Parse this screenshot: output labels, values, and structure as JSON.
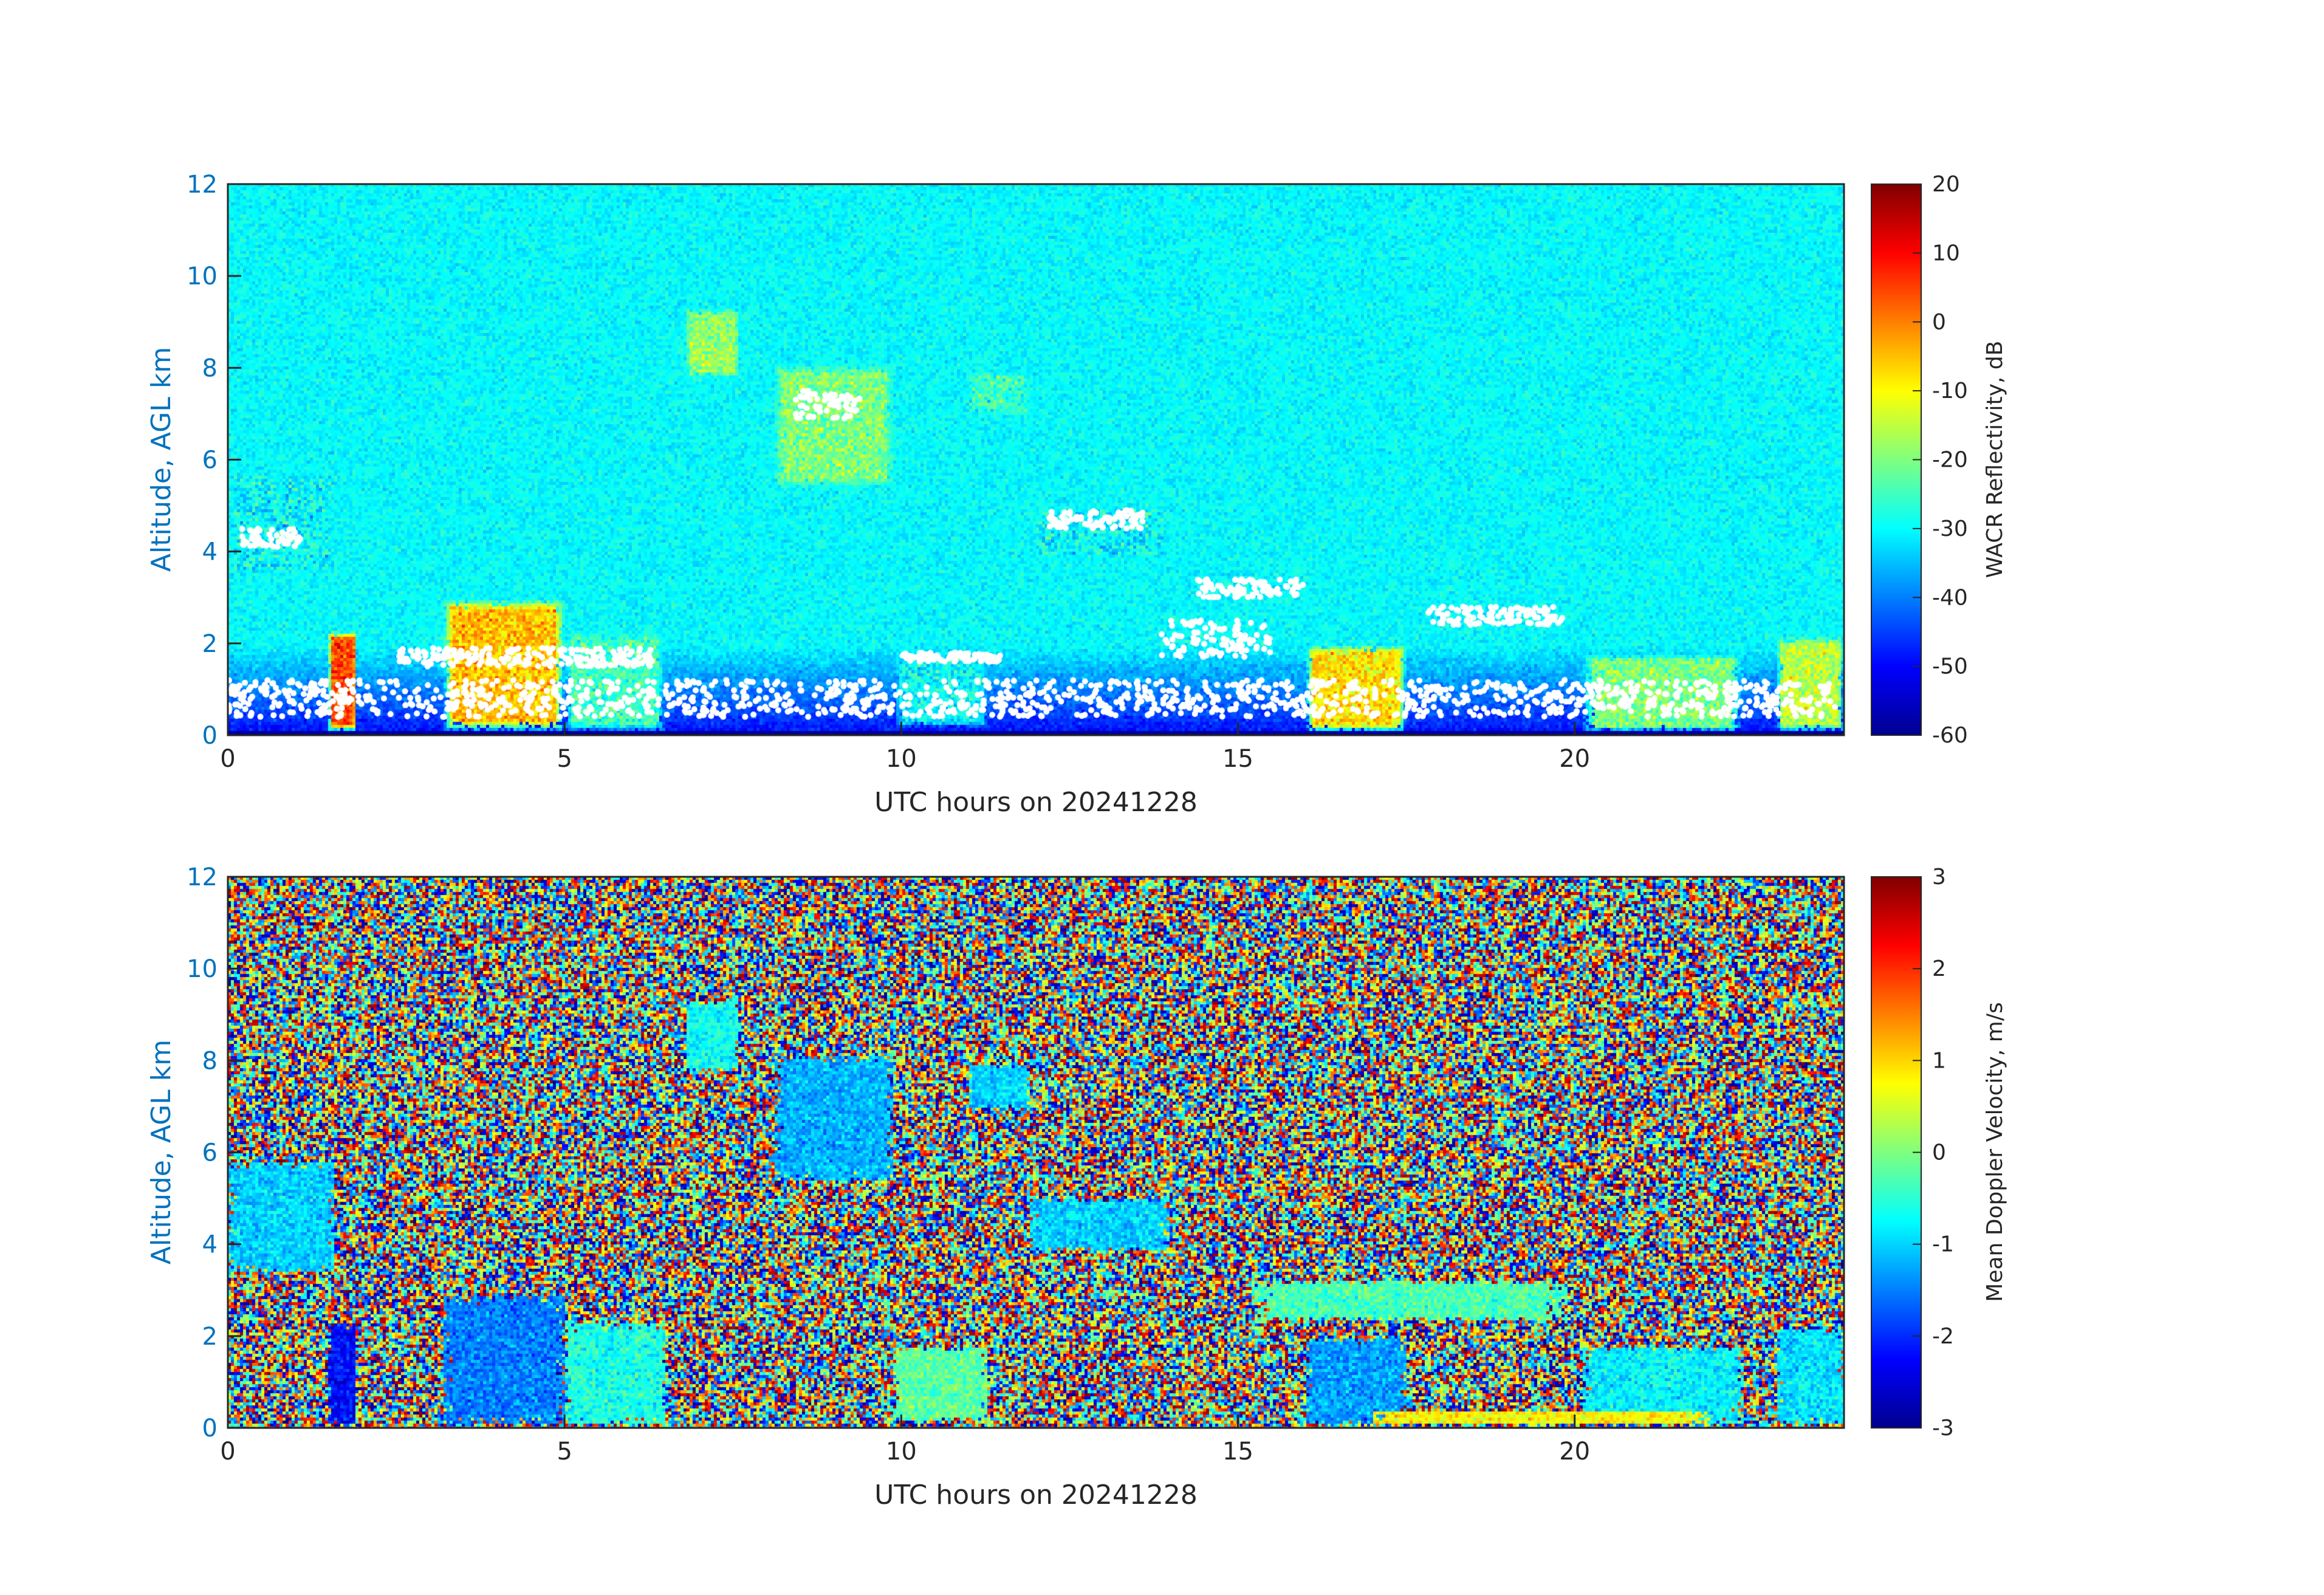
{
  "colors": {
    "axis": "#262626",
    "ytick": "#0072BD",
    "jet": [
      "#00008f",
      "#0000ff",
      "#007fff",
      "#00ffff",
      "#7fff7f",
      "#ffff00",
      "#ff7f00",
      "#ff0000",
      "#800000"
    ]
  },
  "chart_data": [
    {
      "type": "heatmap",
      "variable": "WACR Reflectivity",
      "xlabel": "UTC hours on 20241228",
      "ylabel": "Altitude, AGL km",
      "xlim": [
        0,
        24
      ],
      "ylim": [
        0,
        12
      ],
      "xticks": [
        0,
        5,
        10,
        15,
        20
      ],
      "yticks": [
        0,
        2,
        4,
        6,
        8,
        10,
        12
      ],
      "colorbar": {
        "label": "WACR Reflectivity, dB",
        "clim": [
          -60,
          20
        ],
        "ticks": [
          -60,
          -50,
          -40,
          -30,
          -20,
          -10,
          0,
          10,
          20
        ]
      },
      "background": {
        "value_surface": -50,
        "value_top": -30
      },
      "features": [
        {
          "kind": "cloud",
          "t": [
            0.0,
            1.6
          ],
          "z": [
            3.5,
            5.8
          ],
          "value": -30
        },
        {
          "kind": "cloud",
          "t": [
            6.8,
            7.6
          ],
          "z": [
            7.8,
            9.3
          ],
          "value": -18
        },
        {
          "kind": "cloud",
          "t": [
            8.1,
            9.9
          ],
          "z": [
            5.4,
            8.1
          ],
          "value": -20
        },
        {
          "kind": "cloud",
          "t": [
            11.0,
            11.9
          ],
          "z": [
            7.0,
            7.9
          ],
          "value": -25
        },
        {
          "kind": "cloud",
          "t": [
            11.9,
            14.0
          ],
          "z": [
            3.9,
            5.0
          ],
          "value": -30
        },
        {
          "kind": "cloud",
          "t": [
            3.2,
            5.0
          ],
          "z": [
            0.1,
            3.0
          ],
          "value": -5
        },
        {
          "kind": "cloud",
          "t": [
            5.0,
            6.5
          ],
          "z": [
            0.1,
            2.3
          ],
          "value": -25
        },
        {
          "kind": "cloud",
          "t": [
            1.5,
            1.9
          ],
          "z": [
            0.1,
            2.3
          ],
          "value": 5
        },
        {
          "kind": "cloud",
          "t": [
            16.0,
            17.5
          ],
          "z": [
            0.1,
            2.0
          ],
          "value": -8
        },
        {
          "kind": "cloud",
          "t": [
            20.1,
            22.5
          ],
          "z": [
            0.1,
            1.8
          ],
          "value": -20
        },
        {
          "kind": "cloud",
          "t": [
            23.0,
            24.0
          ],
          "z": [
            0.1,
            2.2
          ],
          "value": -15
        },
        {
          "kind": "cloud",
          "t": [
            9.9,
            11.3
          ],
          "z": [
            0.2,
            1.8
          ],
          "value": -30
        }
      ],
      "cloud_base_points": [
        {
          "t": [
            0.2,
            1.1
          ],
          "z": [
            4.1,
            4.5
          ]
        },
        {
          "t": [
            2.5,
            6.3
          ],
          "z": [
            1.5,
            1.9
          ]
        },
        {
          "t": [
            10.0,
            11.5
          ],
          "z": [
            1.6,
            1.8
          ]
        },
        {
          "t": [
            12.2,
            13.6
          ],
          "z": [
            4.5,
            4.9
          ]
        },
        {
          "t": [
            14.4,
            16.0
          ],
          "z": [
            3.0,
            3.4
          ]
        },
        {
          "t": [
            17.8,
            19.9
          ],
          "z": [
            2.4,
            2.8
          ]
        },
        {
          "t": [
            13.8,
            15.5
          ],
          "z": [
            1.7,
            2.5
          ]
        },
        {
          "t": [
            0.0,
            23.9
          ],
          "z": [
            0.4,
            1.2
          ]
        },
        {
          "t": [
            8.4,
            9.4
          ],
          "z": [
            6.9,
            7.5
          ]
        }
      ]
    },
    {
      "type": "heatmap",
      "variable": "Mean Doppler Velocity",
      "xlabel": "UTC hours on 20241228",
      "ylabel": "Altitude, AGL km",
      "xlim": [
        0,
        24
      ],
      "ylim": [
        0,
        12
      ],
      "xticks": [
        0,
        5,
        10,
        15,
        20
      ],
      "yticks": [
        0,
        2,
        4,
        6,
        8,
        10,
        12
      ],
      "colorbar": {
        "label": "Mean Doppler Velocity, m/s",
        "clim": [
          -3,
          3
        ],
        "ticks": [
          -3,
          -2,
          -1,
          0,
          1,
          2,
          3
        ]
      },
      "background": {
        "kind": "noise"
      },
      "features": [
        {
          "kind": "cloud",
          "t": [
            0.0,
            1.6
          ],
          "z": [
            3.4,
            5.8
          ],
          "value": -1.0
        },
        {
          "kind": "cloud",
          "t": [
            6.8,
            7.6
          ],
          "z": [
            7.8,
            9.3
          ],
          "value": -0.7
        },
        {
          "kind": "cloud",
          "t": [
            8.1,
            9.9
          ],
          "z": [
            5.4,
            8.1
          ],
          "value": -1.2
        },
        {
          "kind": "cloud",
          "t": [
            11.0,
            11.9
          ],
          "z": [
            7.0,
            7.9
          ],
          "value": -1.0
        },
        {
          "kind": "cloud",
          "t": [
            11.9,
            14.0
          ],
          "z": [
            3.9,
            5.0
          ],
          "value": -1.0
        },
        {
          "kind": "cloud",
          "t": [
            3.2,
            5.0
          ],
          "z": [
            0.1,
            2.9
          ],
          "value": -1.5
        },
        {
          "kind": "cloud",
          "t": [
            5.0,
            6.5
          ],
          "z": [
            0.1,
            2.3
          ],
          "value": -0.6
        },
        {
          "kind": "cloud",
          "t": [
            1.5,
            1.9
          ],
          "z": [
            0.1,
            2.3
          ],
          "value": -2.2
        },
        {
          "kind": "cloud",
          "t": [
            16.0,
            17.5
          ],
          "z": [
            0.1,
            2.0
          ],
          "value": -1.3
        },
        {
          "kind": "cloud",
          "t": [
            20.1,
            22.5
          ],
          "z": [
            0.1,
            1.8
          ],
          "value": -0.8
        },
        {
          "kind": "cloud",
          "t": [
            23.0,
            24.0
          ],
          "z": [
            0.1,
            2.2
          ],
          "value": -0.9
        },
        {
          "kind": "cloud",
          "t": [
            9.9,
            11.3
          ],
          "z": [
            0.2,
            1.8
          ],
          "value": -0.2
        },
        {
          "kind": "cloud",
          "t": [
            15.2,
            19.9
          ],
          "z": [
            2.4,
            3.2
          ],
          "value": -0.3
        },
        {
          "kind": "cloud",
          "t": [
            17.0,
            22.0
          ],
          "z": [
            0.1,
            0.4
          ],
          "value": 0.8
        }
      ]
    }
  ]
}
